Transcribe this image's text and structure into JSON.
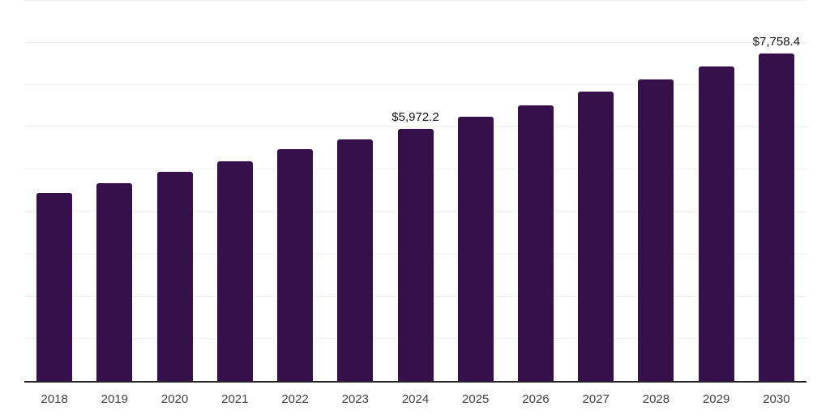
{
  "chart_data": {
    "type": "bar",
    "title": "",
    "xlabel": "",
    "ylabel": "",
    "categories": [
      "2018",
      "2019",
      "2020",
      "2021",
      "2022",
      "2023",
      "2024",
      "2025",
      "2026",
      "2027",
      "2028",
      "2029",
      "2030"
    ],
    "values": [
      4450,
      4675,
      4950,
      5210,
      5480,
      5725,
      5972.2,
      6265,
      6530,
      6855,
      7130,
      7450,
      7758.4
    ],
    "data_labels": [
      {
        "category": "2024",
        "text": "$5,972.2"
      },
      {
        "category": "2030",
        "text": "$7,758.4"
      }
    ],
    "ylim": [
      0,
      9000
    ],
    "gridline_step": 1000,
    "grid": true,
    "legend": "none",
    "colors": {
      "bar": "#36104b",
      "gridline": "#f2f2f2",
      "axis": "#262626",
      "tick_label": "#404040",
      "data_label": "#111111"
    }
  }
}
